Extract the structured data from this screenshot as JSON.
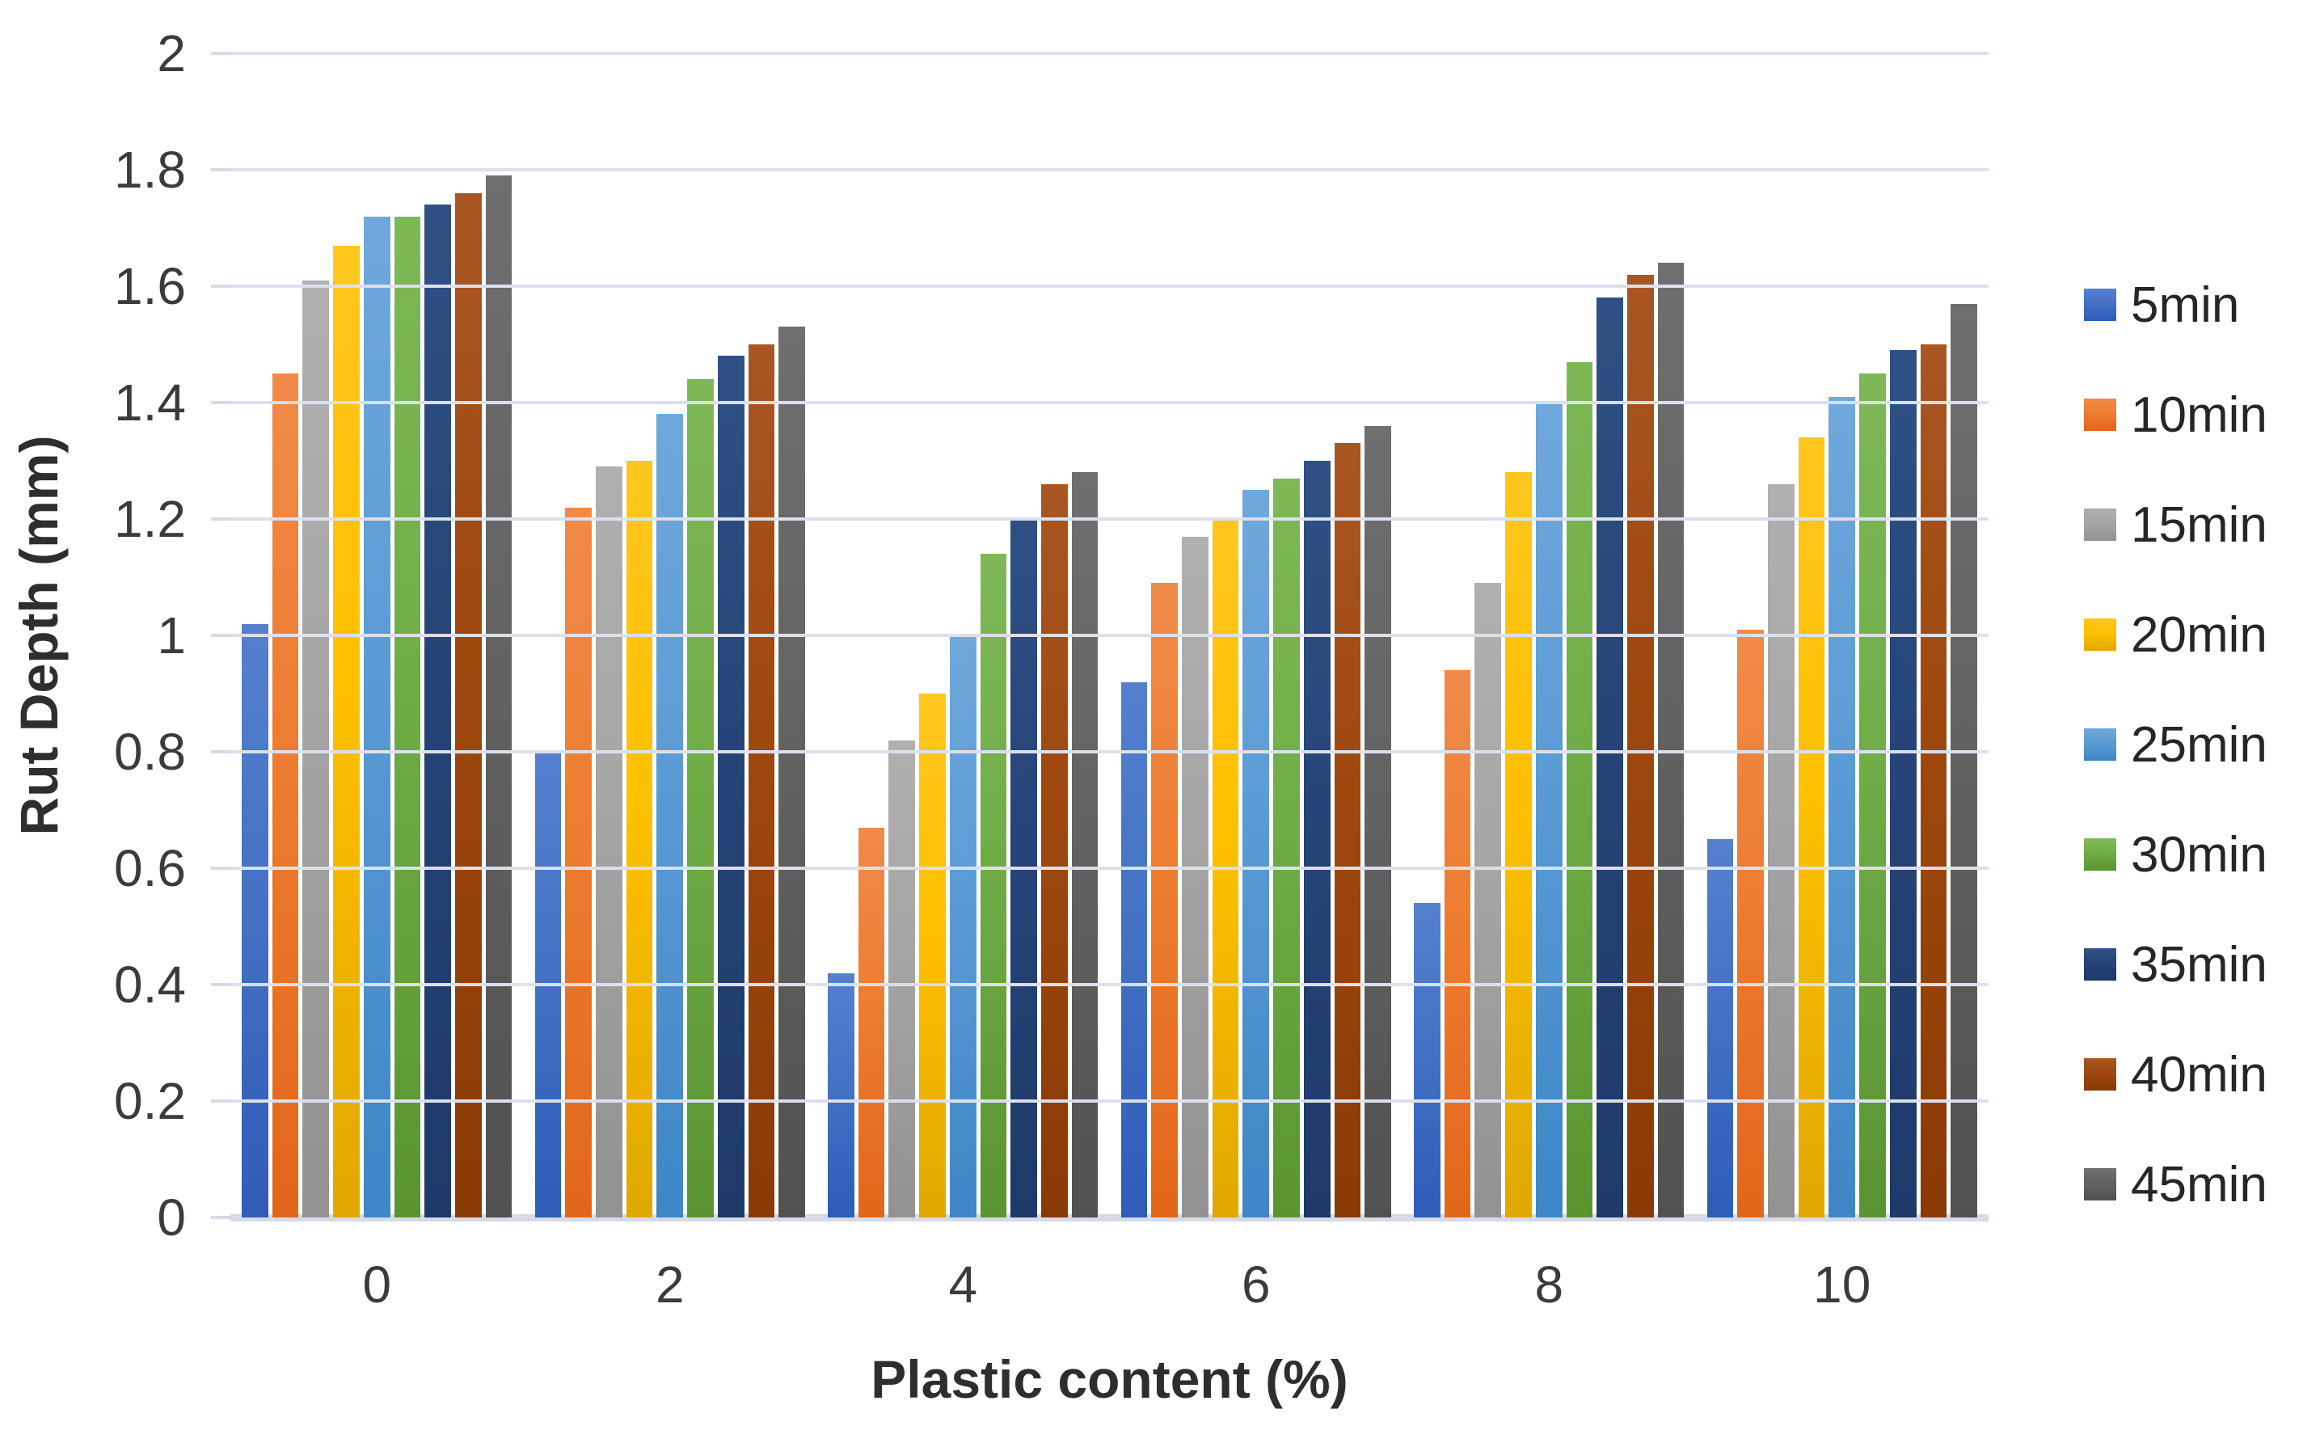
{
  "chart_data": {
    "type": "bar",
    "title": "",
    "xlabel": "Plastic content (%)",
    "ylabel": "Rut Depth (mm)",
    "categories": [
      0,
      2,
      4,
      6,
      8,
      10
    ],
    "y_ticks": [
      0,
      0.2,
      0.4,
      0.6,
      0.8,
      1,
      1.2,
      1.4,
      1.6,
      1.8,
      2
    ],
    "ylim": [
      0,
      2
    ],
    "grid": true,
    "legend_position": "right",
    "colors": {
      "gridline": "#dce0ec",
      "axis_line": "#d6dae6",
      "tick_text": "#3b3b3b",
      "title_text": "#2e2e2e"
    },
    "series": [
      {
        "name": "5min",
        "color": "#4472C4",
        "color_top": "#5480CE",
        "color_bottom": "#2E5CB8",
        "values": [
          1.02,
          0.8,
          0.42,
          0.92,
          0.54,
          0.65
        ]
      },
      {
        "name": "10min",
        "color": "#ED7D31",
        "color_top": "#F08A49",
        "color_bottom": "#E2661A",
        "values": [
          1.45,
          1.22,
          0.67,
          1.09,
          0.94,
          1.01
        ]
      },
      {
        "name": "15min",
        "color": "#A5A5A5",
        "color_top": "#B0B0B0",
        "color_bottom": "#929292",
        "values": [
          1.61,
          1.29,
          0.82,
          1.17,
          1.09,
          1.26
        ]
      },
      {
        "name": "20min",
        "color": "#FFC000",
        "color_top": "#FFC61E",
        "color_bottom": "#E0A800",
        "values": [
          1.67,
          1.3,
          0.9,
          1.2,
          1.28,
          1.34
        ]
      },
      {
        "name": "25min",
        "color": "#5B9BD5",
        "color_top": "#6FA8DC",
        "color_bottom": "#3E86C6",
        "values": [
          1.72,
          1.38,
          1.0,
          1.25,
          1.4,
          1.41
        ]
      },
      {
        "name": "30min",
        "color": "#70AD47",
        "color_top": "#7EB857",
        "color_bottom": "#599431",
        "values": [
          1.72,
          1.44,
          1.14,
          1.27,
          1.47,
          1.45
        ]
      },
      {
        "name": "35min",
        "color": "#264478",
        "color_top": "#2F5184",
        "color_bottom": "#1D3A69",
        "values": [
          1.74,
          1.48,
          1.2,
          1.3,
          1.58,
          1.49
        ]
      },
      {
        "name": "40min",
        "color": "#9E480E",
        "color_top": "#A95623",
        "color_bottom": "#8A3A05",
        "values": [
          1.76,
          1.5,
          1.26,
          1.33,
          1.62,
          1.5
        ]
      },
      {
        "name": "45min",
        "color": "#636363",
        "color_top": "#6F6F6F",
        "color_bottom": "#515151",
        "values": [
          1.79,
          1.53,
          1.28,
          1.36,
          1.64,
          1.57
        ]
      }
    ]
  }
}
